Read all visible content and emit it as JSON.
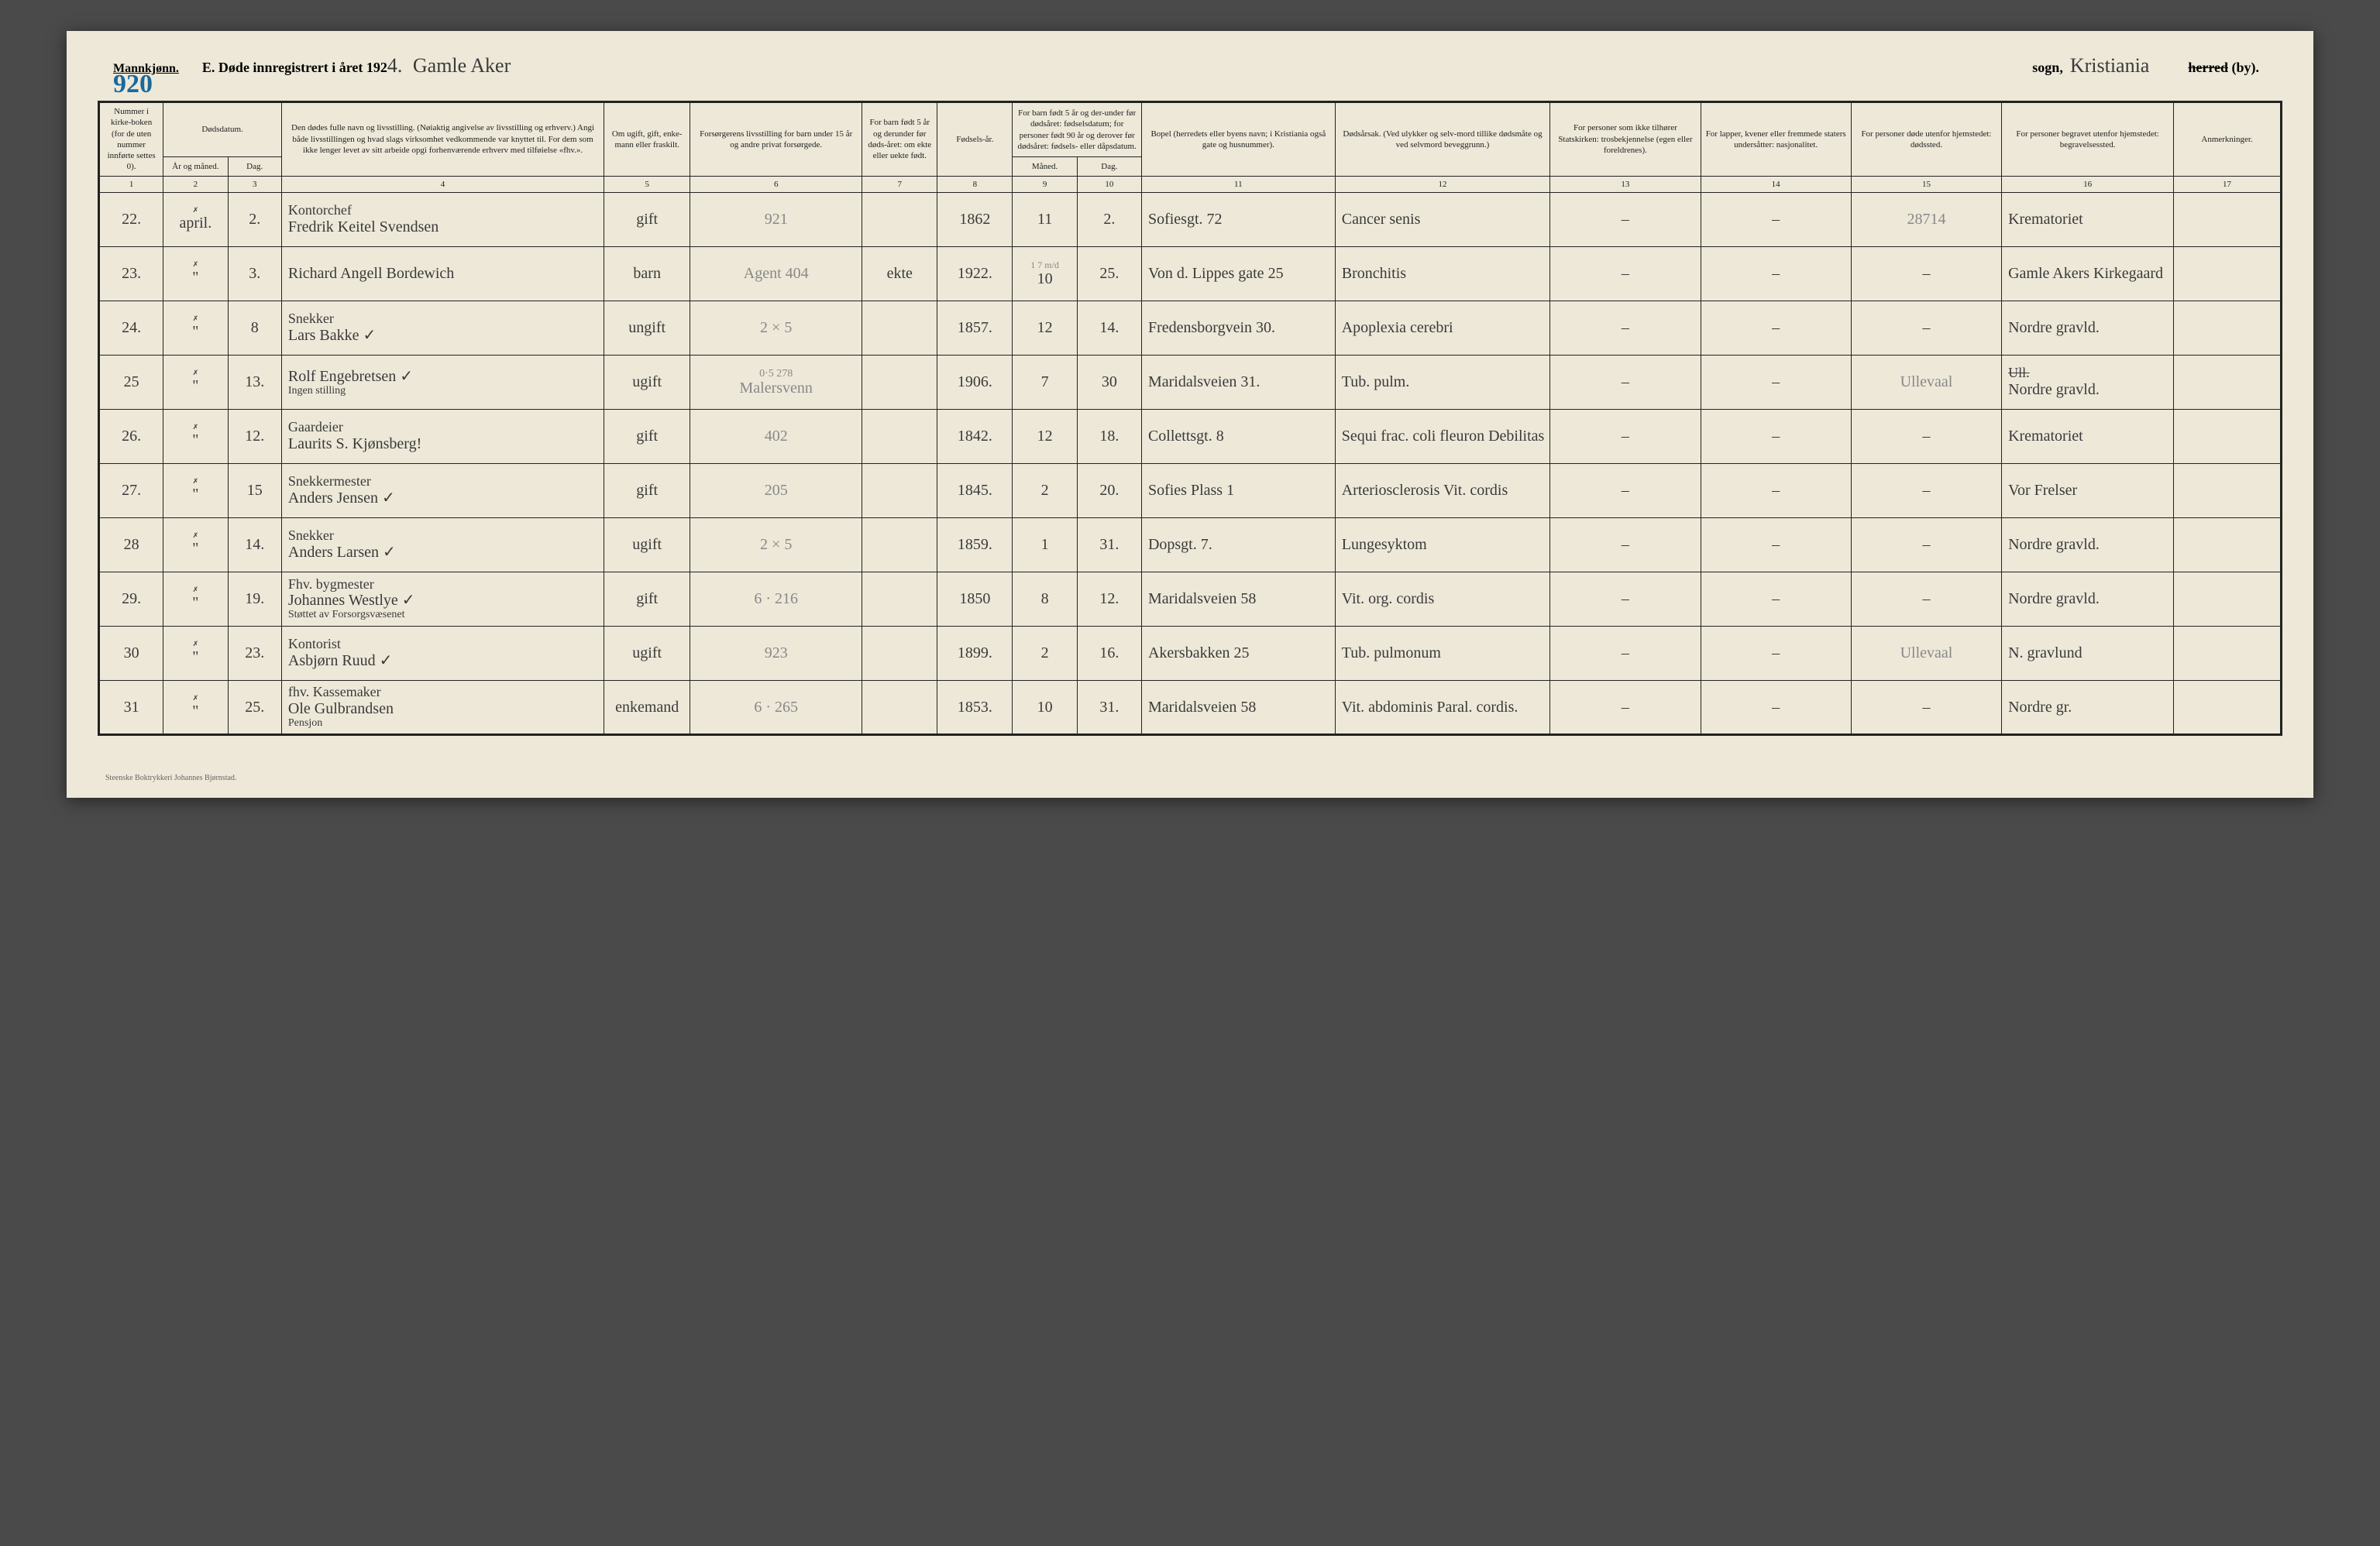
{
  "header": {
    "gender_label": "Mannkjønn.",
    "page_number_hw": "920",
    "title_prefix": "E.  Døde innregistrert i året 192",
    "year_suffix_hw": "4.",
    "parish_hw": "Gamle Aker",
    "sogn_label": "sogn,",
    "city_hw": "Kristiania",
    "herred_struck": "herred",
    "by_label": " (by)."
  },
  "columns": {
    "c1": "Nummer i kirke-boken (for de uten nummer innførte settes 0).",
    "c2_top": "Dødsdatum.",
    "c2a": "År og måned.",
    "c2b": "Dag.",
    "c4": "Den dødes fulle navn og livsstilling. (Nøiaktig angivelse av livsstilling og erhverv.) Angi både livsstillingen og hvad slags virksomhet vedkommende var knyttet til. For dem som ikke lenger levet av sitt arbeide opgi forhenværende erhverv med tilføielse «fhv.».",
    "c5": "Om ugift, gift, enke-mann eller fraskilt.",
    "c6": "Forsørgerens livsstilling for barn under 15 år og andre privat forsørgede.",
    "c7": "For barn født 5 år og derunder før døds-året: om ekte eller uekte født.",
    "c8": "Fødsels-år.",
    "c9_top": "For barn født 5 år og der-under før dødsåret: fødselsdatum; for personer født 90 år og derover før dødsåret: fødsels- eller dåpsdatum.",
    "c9a": "Måned.",
    "c9b": "Dag.",
    "c11": "Bopel (herredets eller byens navn; i Kristiania også gate og husnummer).",
    "c12": "Dødsårsak. (Ved ulykker og selv-mord tillike dødsmåte og ved selvmord beveggrunn.)",
    "c13": "For personer som ikke tilhører Statskirken: trosbekjennelse (egen eller foreldrenes).",
    "c14": "For lapper, kvener eller fremmede staters undersåtter: nasjonalitet.",
    "c15": "For personer døde utenfor hjemstedet: dødssted.",
    "c16": "For personer begravet utenfor hjemstedet: begravelsessted.",
    "c17": "Anmerkninger."
  },
  "colnums": [
    "1",
    "2",
    "3",
    "4",
    "5",
    "6",
    "7",
    "8",
    "9",
    "10",
    "11",
    "12",
    "13",
    "14",
    "15",
    "16",
    "17"
  ],
  "rows": [
    {
      "tick": "✓",
      "num": "22.",
      "ym": "april.",
      "ym_mark": "✗",
      "day": "2.",
      "name_l1": "Kontorchef",
      "name_l2": "Fredrik Keitel Svendsen",
      "civil": "gift",
      "provider": "921",
      "ekte": "",
      "birth": "1862",
      "bm": "11",
      "bd": "2.",
      "residence": "Sofiesgt. 72",
      "cause": "Cancer senis",
      "c13": "–",
      "c14": "–",
      "c15": "28714",
      "c16": "Krematoriet",
      "c17": ""
    },
    {
      "tick": "✓",
      "num": "23.",
      "ym": "\"",
      "ym_mark": "✗",
      "day": "3.",
      "name_l1": "",
      "name_l2": "Richard Angell Bordewich",
      "civil": "barn",
      "provider": "Agent 404",
      "ekte": "ekte",
      "birth": "1922.",
      "bm": "10",
      "bd": "25.",
      "bm_note": "1 7 m/d",
      "residence": "Von d. Lippes gate 25",
      "cause": "Bronchitis",
      "c13": "–",
      "c14": "–",
      "c15": "–",
      "c16": "Gamle Akers Kirkegaard",
      "c17": ""
    },
    {
      "tick": "✓",
      "num": "24.",
      "ym": "\"",
      "ym_mark": "✗",
      "day": "8",
      "name_l1": "Snekker",
      "name_l2": "Lars Bakke ✓",
      "civil": "ungift",
      "provider": "2 × 5",
      "ekte": "",
      "birth": "1857.",
      "bm": "12",
      "bd": "14.",
      "residence": "Fredensborgvein 30.",
      "cause": "Apoplexia cerebri",
      "c13": "–",
      "c14": "–",
      "c15": "–",
      "c16": "Nordre gravld.",
      "c17": ""
    },
    {
      "tick": "✓",
      "num": "25",
      "ym": "\"",
      "ym_mark": "✗",
      "day": "13.",
      "name_l1": "",
      "name_l2": "Rolf Engebretsen ✓",
      "name_l3": "Ingen stilling",
      "civil": "ugift",
      "provider": "Malersvenn",
      "provider_top": "0·5   278",
      "ekte": "",
      "birth": "1906.",
      "bm": "7",
      "bd": "30",
      "residence": "Maridalsveien 31.",
      "cause": "Tub. pulm.",
      "c13": "–",
      "c14": "–",
      "c15": "Ullevaal",
      "c16": "Nordre gravld.",
      "c16_struck": "Ull.",
      "c17": ""
    },
    {
      "tick": "✓",
      "num": "26.",
      "ym": "\"",
      "ym_mark": "✗",
      "day": "12.",
      "name_l1": "Gaardeier",
      "name_l2": "Laurits S. Kjønsberg!",
      "civil": "gift",
      "provider": "402",
      "ekte": "",
      "birth": "1842.",
      "bm": "12",
      "bd": "18.",
      "residence": "Collettsgt. 8",
      "cause": "Sequi frac. coli fleuron Debilitas",
      "c13": "–",
      "c14": "–",
      "c15": "–",
      "c16": "Krematoriet",
      "c17": ""
    },
    {
      "tick": "✓",
      "num": "27.",
      "ym": "\"",
      "ym_mark": "✗",
      "day": "15",
      "name_l1": "Snekkermester",
      "name_l2": "Anders Jensen ✓",
      "civil": "gift",
      "provider": "205",
      "ekte": "",
      "birth": "1845.",
      "bm": "2",
      "bd": "20.",
      "residence": "Sofies Plass 1",
      "cause": "Arteriosclerosis Vit. cordis",
      "c13": "–",
      "c14": "–",
      "c15": "–",
      "c16": "Vor Frelser",
      "c17": ""
    },
    {
      "tick": "✓",
      "num": "28",
      "ym": "\"",
      "ym_mark": "✗",
      "day": "14.",
      "name_l1": "Snekker",
      "name_l2": "Anders Larsen ✓",
      "civil": "ugift",
      "provider": "2 × 5",
      "ekte": "",
      "birth": "1859.",
      "bm": "1",
      "bd": "31.",
      "residence": "Dopsgt. 7.",
      "cause": "Lungesyktom",
      "c13": "–",
      "c14": "–",
      "c15": "–",
      "c16": "Nordre gravld.",
      "c17": ""
    },
    {
      "tick": "✓",
      "num": "29.",
      "ym": "\"",
      "ym_mark": "✗",
      "day": "19.",
      "name_l1": "Fhv. bygmester",
      "name_l2": "Johannes Westlye ✓",
      "name_l3": "Støttet av Forsorgsvæsenet",
      "civil": "gift",
      "provider": "6 · 216",
      "ekte": "",
      "birth": "1850",
      "bm": "8",
      "bd": "12.",
      "residence": "Maridalsveien 58",
      "cause": "Vit. org. cordis",
      "c13": "–",
      "c14": "–",
      "c15": "–",
      "c16": "Nordre gravld.",
      "c17": ""
    },
    {
      "tick": "✓",
      "num": "30",
      "ym": "\"",
      "ym_mark": "✗",
      "day": "23.",
      "name_l1": "Kontorist",
      "name_l2": "Asbjørn Ruud ✓",
      "civil": "ugift",
      "provider": "923",
      "ekte": "",
      "birth": "1899.",
      "bm": "2",
      "bd": "16.",
      "residence": "Akersbakken 25",
      "cause": "Tub. pulmonum",
      "c13": "–",
      "c14": "–",
      "c15": "Ullevaal",
      "c16": "N. gravlund",
      "c17": ""
    },
    {
      "tick": "",
      "num": "31",
      "ym": "\"",
      "ym_mark": "✗",
      "day": "25.",
      "name_l1": "fhv. Kassemaker",
      "name_l2": "Ole Gulbrandsen",
      "name_l3": "Pensjon",
      "civil": "enkemand",
      "provider": "6 · 265",
      "ekte": "",
      "birth": "1853.",
      "bm": "10",
      "bd": "31.",
      "residence": "Maridalsveien 58",
      "cause": "Vit. abdominis Paral. cordis.",
      "c13": "–",
      "c14": "–",
      "c15": "–",
      "c16": "Nordre gr.",
      "c17": ""
    }
  ],
  "footer": "Steenske Boktrykkeri Johannes Bjørnstad."
}
